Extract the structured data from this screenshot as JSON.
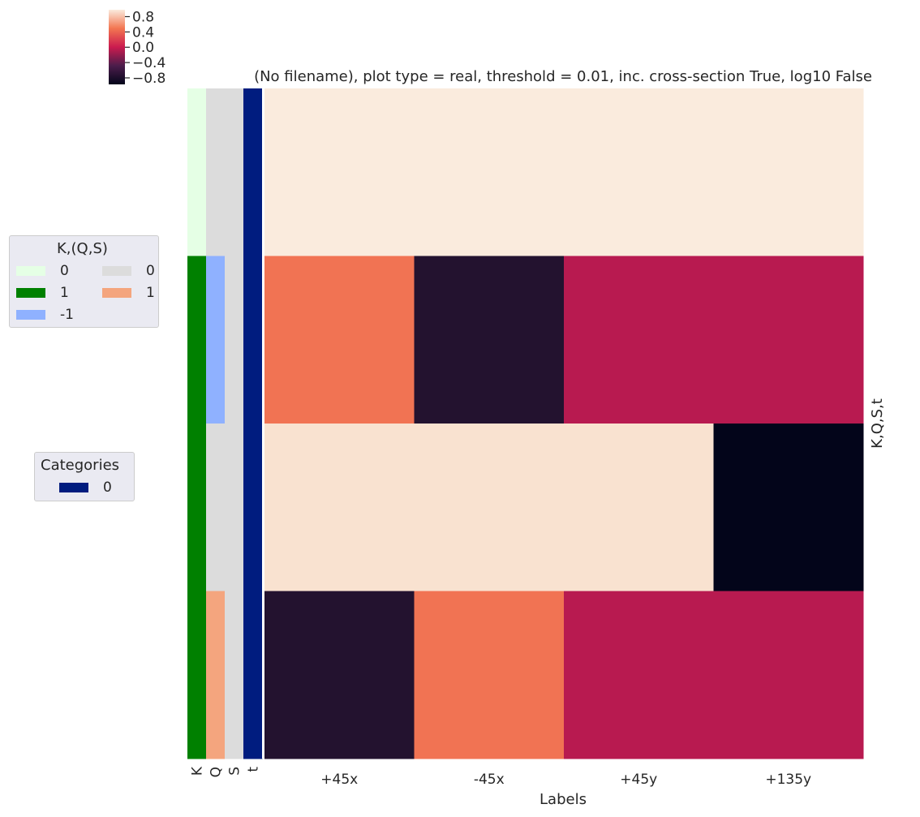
{
  "chart_data": {
    "type": "heatmap",
    "title": "(No filename), plot type = real, threshold = 0.01, inc. cross-section True, log10 False",
    "xlabel": "Labels",
    "ylabel": "K,Q,S,t",
    "columns": [
      "+45x",
      "-45x",
      "+45y",
      "+135y"
    ],
    "values": [
      [
        0.98,
        0.98,
        0.98,
        0.98
      ],
      [
        0.45,
        -0.72,
        -0.05,
        -0.05
      ],
      [
        0.9,
        0.9,
        0.9,
        -0.97
      ],
      [
        -0.72,
        0.45,
        -0.05,
        -0.05
      ]
    ],
    "colorbar": {
      "ticks": [
        "0.8",
        "0.4",
        "0.0",
        "−0.4",
        "−0.8"
      ],
      "tick_values": [
        0.8,
        0.4,
        0.0,
        -0.4,
        -0.8
      ],
      "range": [
        -0.97,
        0.98
      ]
    },
    "row_annotations": {
      "column_labels": [
        "K",
        "Q",
        "S",
        "t"
      ],
      "K": [
        0,
        1,
        1,
        1
      ],
      "Q": [
        0,
        -1,
        0,
        1
      ],
      "S": [
        0,
        0,
        0,
        0
      ],
      "t": [
        0,
        0,
        0,
        0
      ]
    },
    "legends": {
      "kqs": {
        "title": "K,(Q,S)",
        "entries": [
          {
            "label": "0",
            "color": "#e5ffe5"
          },
          {
            "label": "1",
            "color": "#008000"
          },
          {
            "label": "-1",
            "color": "#8fb1ff"
          },
          {
            "label": "0",
            "color": "#dcdcdc"
          },
          {
            "label": "1",
            "color": "#f4a57e"
          }
        ]
      },
      "categories": {
        "title": "Categories",
        "entries": [
          {
            "label": "0",
            "color": "#001c7f"
          }
        ]
      }
    },
    "colors": {
      "K": {
        "0": "#e5ffe5",
        "1": "#008000"
      },
      "Q": {
        "0": "#dcdcdc",
        "1": "#f4a57e",
        "-1": "#8fb1ff"
      },
      "S": {
        "0": "#dcdcdc"
      },
      "t": {
        "0": "#001c7f"
      }
    }
  }
}
